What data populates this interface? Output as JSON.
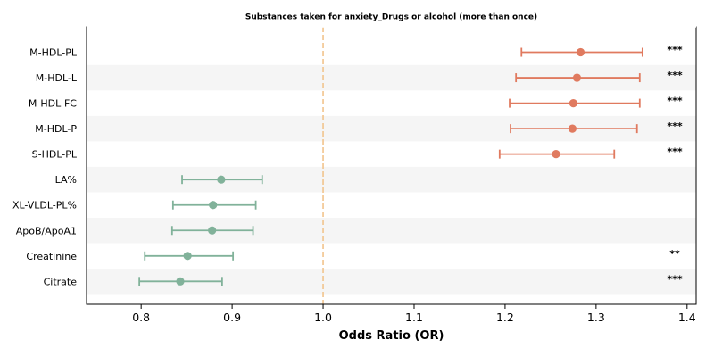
{
  "chart_data": {
    "type": "forest",
    "title": "Substances taken for anxiety_Drugs or alcohol (more than once)",
    "xlabel": "Odds Ratio (OR)",
    "ylabel": "",
    "xlim": [
      0.74,
      1.41
    ],
    "x_ticks": [
      0.8,
      0.9,
      1.0,
      1.1,
      1.2,
      1.3,
      1.4
    ],
    "x_tick_labels": [
      "0.8",
      "0.9",
      "1.0",
      "1.1",
      "1.2",
      "1.3",
      "1.4"
    ],
    "reference_line": 1.0,
    "row_banding": true,
    "colors": {
      "positive": "#e07a5f",
      "negative": "#81b29a",
      "reference_line": "#f2c48d",
      "band": "#f5f5f5"
    },
    "rows": [
      {
        "label": "M-HDL-PL",
        "or": 1.283,
        "ci_low": 1.218,
        "ci_high": 1.351,
        "sig": "***",
        "direction": "positive"
      },
      {
        "label": "M-HDL-L",
        "or": 1.279,
        "ci_low": 1.212,
        "ci_high": 1.348,
        "sig": "***",
        "direction": "positive"
      },
      {
        "label": "M-HDL-FC",
        "or": 1.275,
        "ci_low": 1.205,
        "ci_high": 1.348,
        "sig": "***",
        "direction": "positive"
      },
      {
        "label": "M-HDL-P",
        "or": 1.274,
        "ci_low": 1.206,
        "ci_high": 1.345,
        "sig": "***",
        "direction": "positive"
      },
      {
        "label": "S-HDL-PL",
        "or": 1.256,
        "ci_low": 1.194,
        "ci_high": 1.32,
        "sig": "***",
        "direction": "positive"
      },
      {
        "label": "LA%",
        "or": 0.888,
        "ci_low": 0.845,
        "ci_high": 0.933,
        "sig": "",
        "direction": "negative"
      },
      {
        "label": "XL-VLDL-PL%",
        "or": 0.879,
        "ci_low": 0.835,
        "ci_high": 0.926,
        "sig": "",
        "direction": "negative"
      },
      {
        "label": "ApoB/ApoA1",
        "or": 0.878,
        "ci_low": 0.834,
        "ci_high": 0.923,
        "sig": "",
        "direction": "negative"
      },
      {
        "label": "Creatinine",
        "or": 0.851,
        "ci_low": 0.804,
        "ci_high": 0.901,
        "sig": "**",
        "direction": "negative"
      },
      {
        "label": "Citrate",
        "or": 0.843,
        "ci_low": 0.798,
        "ci_high": 0.889,
        "sig": "***",
        "direction": "negative"
      }
    ]
  }
}
